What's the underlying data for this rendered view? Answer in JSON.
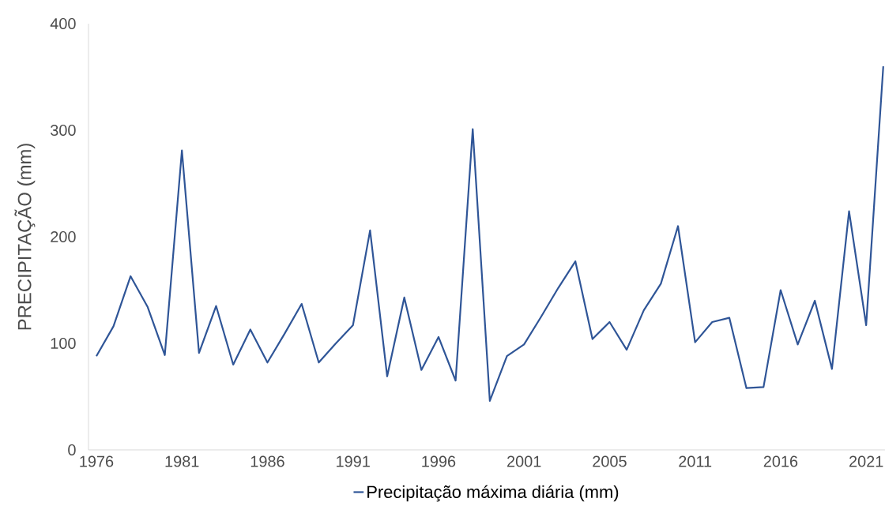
{
  "chart_data": {
    "type": "line",
    "ylabel": "PRECIPITAÇÃO (mm)",
    "categories": [
      "1976",
      null,
      null,
      null,
      null,
      "1981",
      null,
      null,
      null,
      null,
      "1986",
      null,
      null,
      null,
      null,
      "1991",
      null,
      null,
      null,
      null,
      "1996",
      null,
      null,
      null,
      null,
      "2001",
      null,
      null,
      null,
      null,
      "2005",
      null,
      null,
      null,
      null,
      "2011",
      null,
      null,
      null,
      null,
      "2016",
      null,
      null,
      null,
      null,
      "2021",
      null
    ],
    "series": [
      {
        "name": "Precipitação máxima diária (mm)",
        "color": "#2f5597",
        "values": [
          88,
          116,
          163,
          134,
          89,
          281,
          91,
          135,
          80,
          113,
          82,
          109,
          137,
          82,
          100,
          117,
          206,
          69,
          143,
          75,
          106,
          65,
          301,
          46,
          88,
          99,
          125,
          152,
          177,
          104,
          120,
          94,
          131,
          156,
          210,
          101,
          120,
          124,
          58,
          59,
          150,
          99,
          140,
          76,
          224,
          117,
          360
        ]
      }
    ],
    "ylim": [
      0,
      400
    ],
    "yticks": [
      0,
      100,
      200,
      300,
      400
    ],
    "grid": false,
    "legend": "bottom",
    "marker": "none",
    "line_style": "solid"
  }
}
